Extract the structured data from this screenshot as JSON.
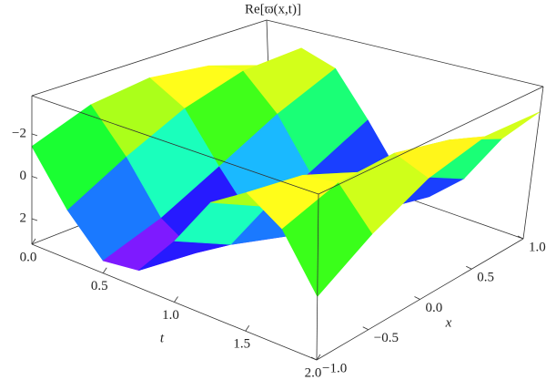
{
  "chart_data": {
    "type": "surface",
    "title": "Re[ϖ(x,t)]",
    "xlabel": "x",
    "tlabel": "t",
    "xlim": [
      -1,
      1
    ],
    "tlim": [
      0,
      2
    ],
    "zlim": [
      -3.8,
      3.2
    ],
    "xticks": [
      {
        "value": -1,
        "label": "−1.0"
      },
      {
        "value": -0.5,
        "label": "−0.5"
      },
      {
        "value": 0,
        "label": "0.0"
      },
      {
        "value": 0.5,
        "label": "0.5"
      },
      {
        "value": 1,
        "label": "1.0"
      }
    ],
    "tticks": [
      {
        "value": 0,
        "label": "0.0"
      },
      {
        "value": 0.5,
        "label": "0.5"
      },
      {
        "value": 1,
        "label": "1.0"
      },
      {
        "value": 1.5,
        "label": "1.5"
      },
      {
        "value": 2,
        "label": "2.0"
      }
    ],
    "zticks": [
      {
        "value": -2,
        "label": "−2"
      },
      {
        "value": 0,
        "label": "0"
      },
      {
        "value": 2,
        "label": "2"
      }
    ],
    "hue_range": [
      0,
      300
    ],
    "x": [
      -1,
      -0.5,
      0,
      0.5,
      1
    ],
    "t": [
      0,
      0.25,
      0.5,
      0.75,
      1,
      1.25,
      1.5,
      1.75,
      2
    ],
    "z": [
      [
        -1.41,
        0.95,
        2.63,
        2.42,
        0.48,
        -1.81,
        -2.8,
        -1.78,
        0.52
      ],
      [
        -2.44,
        -0.5,
        1.8,
        2.8,
        1.8,
        -0.5,
        -2.44,
        -2.62,
        -0.92
      ],
      [
        -2.8,
        -1.81,
        0.48,
        2.42,
        2.63,
        0.95,
        -1.41,
        -2.76,
        -2.13
      ],
      [
        -2.41,
        -2.64,
        -0.97,
        1.39,
        2.76,
        2.14,
        -0.01,
        -2.16,
        -2.76
      ],
      [
        -1.37,
        -2.76,
        -2.16,
        -0.01,
        2.14,
        2.76,
        1.39,
        -0.97,
        -2.64
      ]
    ]
  }
}
